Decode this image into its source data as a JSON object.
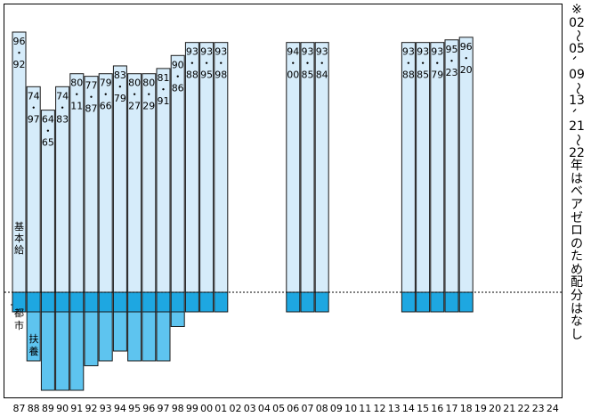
{
  "chart_data": {
    "type": "bar",
    "categories": [
      "87",
      "88",
      "89",
      "90",
      "91",
      "92",
      "93",
      "94",
      "95",
      "96",
      "97",
      "98",
      "99",
      "00",
      "01",
      "02",
      "03",
      "04",
      "05",
      "06",
      "07",
      "08",
      "09",
      "10",
      "11",
      "12",
      "13",
      "14",
      "15",
      "16",
      "17",
      "18",
      "19",
      "20",
      "21",
      "22",
      "23",
      "24"
    ],
    "base_label": "基本給",
    "series": [
      {
        "name": "基本給",
        "values": [
          {
            "label": "96・92",
            "value": 1.0
          },
          {
            "label": "74・97",
            "value": 0.79
          },
          {
            "label": "64・65",
            "value": 0.7
          },
          {
            "label": "74・83",
            "value": 0.79
          },
          {
            "label": "80・11",
            "value": 0.84
          },
          {
            "label": "77・87",
            "value": 0.83
          },
          {
            "label": "79・66",
            "value": 0.84
          },
          {
            "label": "83・79",
            "value": 0.87
          },
          {
            "label": "80・27",
            "value": 0.84
          },
          {
            "label": "80・29",
            "value": 0.84
          },
          {
            "label": "81・91",
            "value": 0.86
          },
          {
            "label": "90・86",
            "value": 0.91
          },
          {
            "label": "93・88",
            "value": 0.96
          },
          {
            "label": "93・95",
            "value": 0.96
          },
          {
            "label": "93・98",
            "value": 0.96
          },
          null,
          null,
          null,
          null,
          {
            "label": "94・00",
            "value": 0.96
          },
          {
            "label": "93・85",
            "value": 0.96
          },
          {
            "label": "93・84",
            "value": 0.96
          },
          null,
          null,
          null,
          null,
          null,
          {
            "label": "93・88",
            "value": 0.96
          },
          {
            "label": "93・85",
            "value": 0.96
          },
          {
            "label": "93・79",
            "value": 0.96
          },
          {
            "label": "95・23",
            "value": 0.97
          },
          {
            "label": "96・20",
            "value": 0.98
          },
          null,
          null,
          null,
          null,
          null,
          null
        ]
      },
      {
        "name": "都市",
        "values": [
          0.2,
          0.2,
          0.2,
          0.2,
          0.2,
          0.2,
          0.2,
          0.2,
          0.2,
          0.2,
          0.2,
          0.2,
          0.2,
          0.2,
          0.2,
          null,
          null,
          null,
          null,
          0.2,
          0.2,
          0.2,
          null,
          null,
          null,
          null,
          null,
          0.2,
          0.2,
          0.2,
          0.2,
          0.2,
          null,
          null,
          null,
          null,
          null,
          null
        ]
      },
      {
        "name": "扶養",
        "values": [
          0,
          0.5,
          0.8,
          0.8,
          0.8,
          0.55,
          0.5,
          0.4,
          0.5,
          0.5,
          0.5,
          0.15,
          0,
          0,
          0,
          null,
          null,
          null,
          null,
          0,
          0,
          0,
          null,
          null,
          null,
          null,
          null,
          0,
          0,
          0,
          0,
          0,
          null,
          null,
          null,
          null,
          null,
          null
        ]
      }
    ],
    "note": [
      "※",
      "02",
      "〜",
      "05",
      "、",
      "09",
      "〜",
      "13",
      "、",
      "21",
      "〜",
      "22",
      "年",
      "は",
      "ベ",
      "ア",
      "ゼ",
      "ロ",
      "の",
      "た",
      "め",
      "配",
      "分",
      "は",
      "な",
      "し"
    ],
    "colors": {
      "base": "#d6ecfa",
      "city": "#1ea7e1",
      "family": "#5ec4ef",
      "border": "#1a1a1a"
    }
  }
}
